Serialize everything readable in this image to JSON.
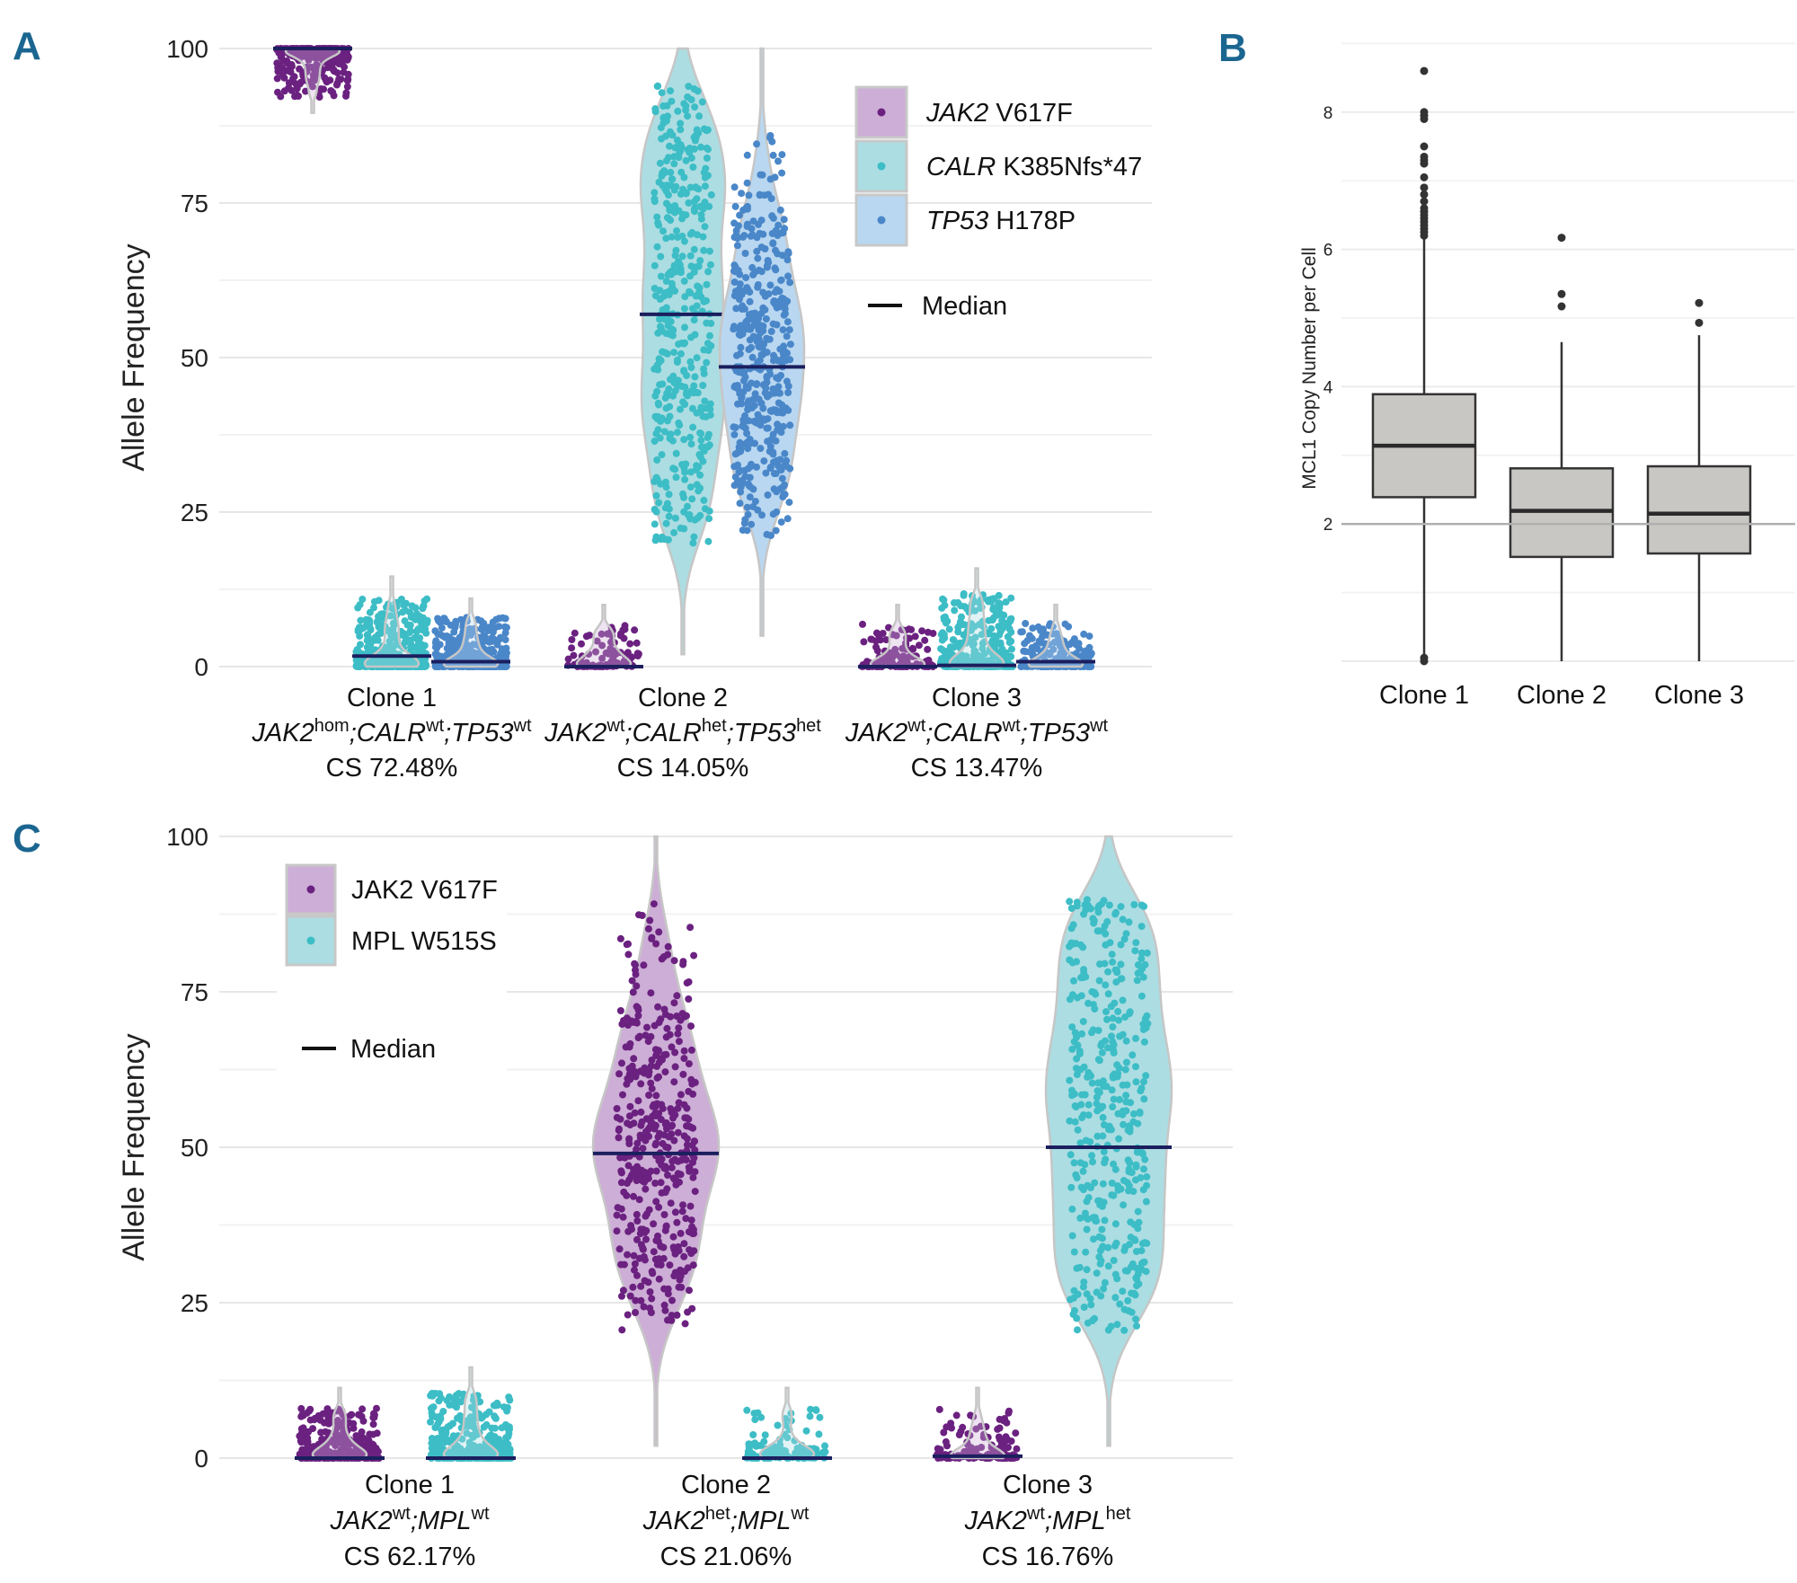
{
  "chart_data": [
    {
      "panel_label": "A",
      "type": "violin",
      "ylabel": "Allele Frequency",
      "ylim": [
        0,
        100
      ],
      "yticks": [
        0,
        25,
        50,
        75,
        100
      ],
      "grid": true,
      "legend_position": "top-right",
      "median_label": "Median",
      "median_color": "#1b1f5e",
      "series": [
        {
          "gene": "JAK2",
          "mutation": "V617F",
          "italic_gene": true,
          "color": "#6b2180",
          "fill": "#cdaed6"
        },
        {
          "gene": "CALR",
          "mutation": "K385Nfs*47",
          "italic_gene": true,
          "color": "#3dbdc6",
          "fill": "#acdde2"
        },
        {
          "gene": "TP53",
          "mutation": "H178P",
          "italic_gene": true,
          "color": "#4a87c9",
          "fill": "#b9d7f0"
        }
      ],
      "categories": [
        {
          "name": "Clone 1",
          "genotype": [
            {
              "gene": "JAK2",
              "state": "hom"
            },
            {
              "gene": "CALR",
              "state": "wt"
            },
            {
              "gene": "TP53",
              "state": "wt"
            }
          ],
          "cs": "CS 72.48%"
        },
        {
          "name": "Clone 2",
          "genotype": [
            {
              "gene": "JAK2",
              "state": "wt"
            },
            {
              "gene": "CALR",
              "state": "het"
            },
            {
              "gene": "TP53",
              "state": "het"
            }
          ],
          "cs": "CS 14.05%"
        },
        {
          "name": "Clone 3",
          "genotype": [
            {
              "gene": "JAK2",
              "state": "wt"
            },
            {
              "gene": "CALR",
              "state": "wt"
            },
            {
              "gene": "TP53",
              "state": "wt"
            }
          ],
          "cs": "CS 13.47%"
        }
      ],
      "violins": [
        {
          "category": 0,
          "series": 0,
          "median": 100,
          "min": 92,
          "max": 100,
          "n": 260,
          "dist": "high",
          "bw": 0.8
        },
        {
          "category": 0,
          "series": 1,
          "median": 1.7,
          "min": 0,
          "max": 11,
          "n": 420,
          "dist": "low",
          "bw": 1.2
        },
        {
          "category": 0,
          "series": 2,
          "median": 0.8,
          "min": 0,
          "max": 8,
          "n": 380,
          "dist": "low",
          "bw": 1.0
        },
        {
          "category": 1,
          "series": 0,
          "median": 0,
          "min": 0,
          "max": 7,
          "n": 90,
          "dist": "low",
          "bw": 1.0
        },
        {
          "category": 1,
          "series": 1,
          "median": 57,
          "min": 20,
          "max": 94,
          "n": 420,
          "dist": "uniform",
          "bw": 6
        },
        {
          "category": 1,
          "series": 2,
          "median": 48.5,
          "min": 20,
          "max": 91,
          "n": 420,
          "dist": "hump",
          "bw": 5
        },
        {
          "category": 2,
          "series": 0,
          "median": 0,
          "min": 0,
          "max": 7,
          "n": 120,
          "dist": "low",
          "bw": 1.0
        },
        {
          "category": 2,
          "series": 1,
          "median": 0.2,
          "min": 0,
          "max": 12,
          "n": 300,
          "dist": "low",
          "bw": 1.3
        },
        {
          "category": 2,
          "series": 2,
          "median": 0.8,
          "min": 0,
          "max": 7,
          "n": 220,
          "dist": "low",
          "bw": 1.0
        }
      ]
    },
    {
      "panel_label": "B",
      "type": "box",
      "ylabel": "MCL1 Copy Number per Cell",
      "ylim": [
        0,
        9
      ],
      "yticks": [
        2,
        4,
        6,
        8
      ],
      "reference_line": 2,
      "grid": true,
      "box_fill": "#c9c7c3",
      "categories": [
        "Clone 1",
        "Clone 2",
        "Clone 3"
      ],
      "boxes": [
        {
          "q1": 2.39,
          "median": 3.14,
          "q3": 3.89,
          "whisker_low": 0.1,
          "whisker_high": 6.15,
          "outliers": [
            0,
            0.05,
            6.2,
            6.25,
            6.3,
            6.35,
            6.4,
            6.45,
            6.5,
            6.55,
            6.6,
            6.7,
            6.8,
            6.9,
            7.05,
            7.25,
            7.3,
            7.35,
            7.5,
            7.9,
            7.95,
            8.0,
            8.6
          ]
        },
        {
          "q1": 1.52,
          "median": 2.19,
          "q3": 2.81,
          "whisker_low": 0,
          "whisker_high": 4.65,
          "outliers": [
            5.17,
            5.35,
            6.17
          ]
        },
        {
          "q1": 1.57,
          "median": 2.15,
          "q3": 2.84,
          "whisker_low": 0,
          "whisker_high": 4.75,
          "outliers": [
            4.93,
            5.22
          ]
        }
      ]
    },
    {
      "panel_label": "C",
      "type": "violin",
      "ylabel": "Allele Frequency",
      "ylim": [
        0,
        100
      ],
      "yticks": [
        0,
        25,
        50,
        75,
        100
      ],
      "grid": true,
      "legend_position": "top-left",
      "median_label": "Median",
      "median_color": "#1b1f5e",
      "series": [
        {
          "gene": "JAK2",
          "mutation": "V617F",
          "italic_gene": false,
          "color": "#6b2180",
          "fill": "#cdaed6"
        },
        {
          "gene": "MPL",
          "mutation": "W515S",
          "italic_gene": false,
          "color": "#3dbdc6",
          "fill": "#acdde2"
        }
      ],
      "categories": [
        {
          "name": "Clone 1",
          "genotype": [
            {
              "gene": "JAK2",
              "state": "wt"
            },
            {
              "gene": "MPL",
              "state": "wt"
            }
          ],
          "cs": "CS 62.17%"
        },
        {
          "name": "Clone 2",
          "genotype": [
            {
              "gene": "JAK2",
              "state": "het"
            },
            {
              "gene": "MPL",
              "state": "wt"
            }
          ],
          "cs": "CS 21.06%"
        },
        {
          "name": "Clone 3",
          "genotype": [
            {
              "gene": "JAK2",
              "state": "wt"
            },
            {
              "gene": "MPL",
              "state": "het"
            }
          ],
          "cs": "CS 16.76%"
        }
      ],
      "violins": [
        {
          "category": 0,
          "series": 0,
          "median": 0,
          "min": 0,
          "max": 8,
          "n": 330,
          "dist": "low",
          "bw": 1.1
        },
        {
          "category": 0,
          "series": 1,
          "median": 0,
          "min": 0,
          "max": 11,
          "n": 330,
          "dist": "low",
          "bw": 1.2
        },
        {
          "category": 1,
          "series": 0,
          "median": 49,
          "min": 20,
          "max": 92,
          "n": 420,
          "dist": "hump",
          "bw": 6
        },
        {
          "category": 1,
          "series": 1,
          "median": 0,
          "min": 0,
          "max": 8,
          "n": 110,
          "dist": "low",
          "bw": 1.1
        },
        {
          "category": 2,
          "series": 0,
          "median": 0.3,
          "min": 0,
          "max": 8,
          "n": 130,
          "dist": "low",
          "bw": 1.1
        },
        {
          "category": 2,
          "series": 1,
          "median": 50,
          "min": 20,
          "max": 90,
          "n": 400,
          "dist": "uniform",
          "bw": 6
        }
      ]
    }
  ]
}
